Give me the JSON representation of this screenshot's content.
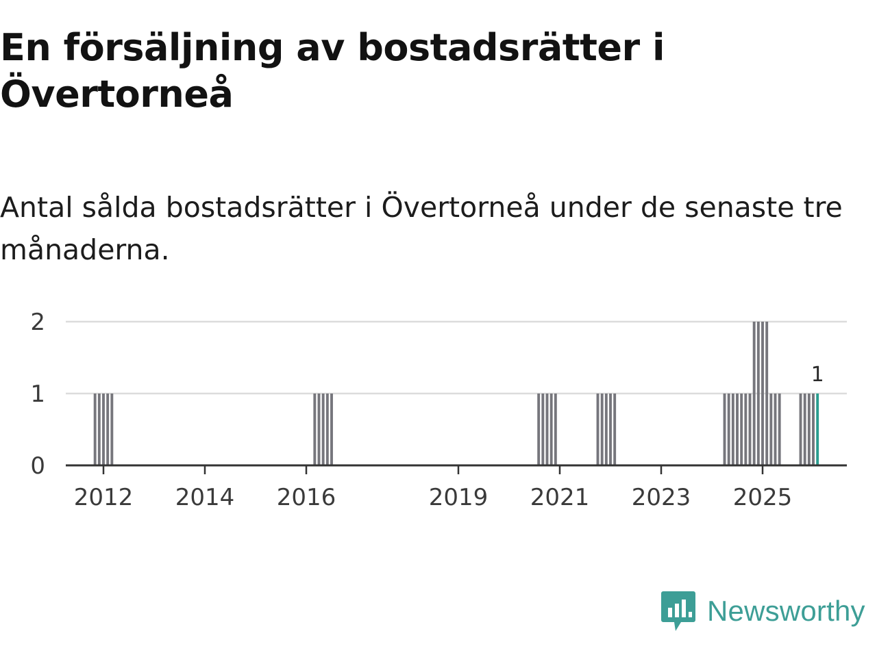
{
  "header": {
    "title": "En försäljning av bostadsrätter i Övertorneå",
    "subtitle": "Antal sålda bostadsrätter i Övertorneå under de senaste tre månaderna."
  },
  "brand": {
    "name": "Newsworthy",
    "icon": "newsworthy-logo-icon",
    "color": "#3d9e96"
  },
  "colors": {
    "bar": "#76767c",
    "highlight": "#2a9d8f",
    "grid": "#dcdcdc",
    "axis": "#333333"
  },
  "chart_data": {
    "type": "bar",
    "title": "En försäljning av bostadsrätter i Övertorneå",
    "subtitle": "Antal sålda bostadsrätter i Övertorneå under de senaste tre månaderna.",
    "xlabel": "",
    "ylabel": "",
    "ylim": [
      0,
      2
    ],
    "yticks": [
      0,
      1,
      2
    ],
    "xticks": [
      "2012",
      "2014",
      "2016",
      "2019",
      "2021",
      "2023",
      "2025"
    ],
    "grid": "horizontal",
    "legend": "none",
    "highlight_last": true,
    "last_value_label": "1",
    "x": [
      "2011-11",
      "2011-12",
      "2012-01",
      "2012-02",
      "2012-03",
      "2016-03",
      "2016-04",
      "2016-05",
      "2016-06",
      "2016-07",
      "2020-08",
      "2020-09",
      "2020-10",
      "2020-11",
      "2020-12",
      "2021-10",
      "2021-11",
      "2021-12",
      "2022-01",
      "2022-02",
      "2024-04",
      "2024-05",
      "2024-06",
      "2024-07",
      "2024-08",
      "2024-09",
      "2024-10",
      "2024-11",
      "2024-12",
      "2025-01",
      "2025-02",
      "2025-03",
      "2025-04",
      "2025-05",
      "2025-10",
      "2025-11",
      "2025-12",
      "2026-01",
      "2026-02"
    ],
    "values": [
      1,
      1,
      1,
      1,
      1,
      1,
      1,
      1,
      1,
      1,
      1,
      1,
      1,
      1,
      1,
      1,
      1,
      1,
      1,
      1,
      1,
      1,
      1,
      1,
      1,
      1,
      1,
      2,
      2,
      2,
      2,
      1,
      1,
      1,
      1,
      1,
      1,
      1,
      1
    ]
  }
}
